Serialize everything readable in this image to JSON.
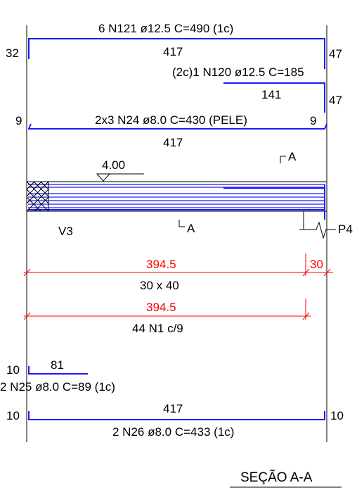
{
  "colors": {
    "rebar": "#1a1aff",
    "dimension": "#ff0000",
    "outline": "#000000",
    "beam_fill": "#ffffff"
  },
  "top_bars": {
    "bar1_label": "6 N121 ø12.5 C=490 (1c)",
    "bar1_length": "417",
    "bar1_left_hook": "32",
    "bar1_right_hook": "47",
    "bar2_label": "(2c)1 N120 ø12.5 C=185",
    "bar2_length": "141",
    "bar2_right_hook": "47",
    "skin_label": "2x3 N24 ø8.0 C=430 (PELE)",
    "skin_left_hook": "9",
    "skin_right_hook": "9",
    "skin_length": "417"
  },
  "elevation": {
    "level": "4.00",
    "section_mark_top": "A",
    "section_mark_bottom": "A",
    "left_support": "V3",
    "right_support": "P4"
  },
  "dimensions": {
    "span": "394.5",
    "support": "30",
    "section_size": "30 x 40",
    "stirrup_span": "394.5",
    "stirrups": "44 N1 c/9"
  },
  "bottom_bars": {
    "n25_length": "81",
    "n25_hook": "10",
    "n25_label": "2 N25 ø8.0 C=89 (1c)",
    "n26_length": "417",
    "n26_left_hook": "10",
    "n26_right_hook": "10",
    "n26_label": "2 N26 ø8.0 C=433 (1c)"
  },
  "section_title": "SEÇÃO A-A"
}
